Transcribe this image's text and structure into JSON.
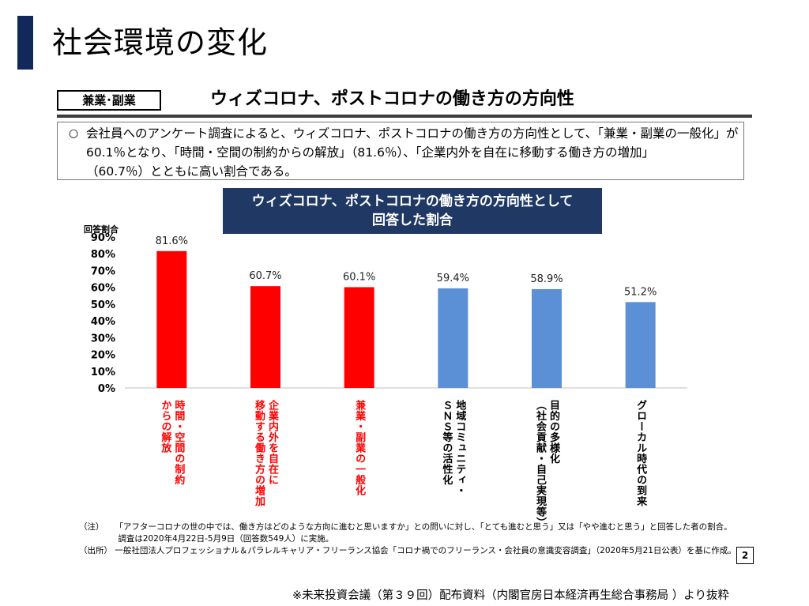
{
  "page_title": "社会環境の変化",
  "tag_label": "兼業･副業",
  "subtitle": "ウィズコロナ、ポストコロナの働き方の方向性",
  "summary": {
    "bullet": "○",
    "line1": "会社員へのアンケート調査によると、ウィズコロナ、ポストコロナの働き方の方向性として、「兼業・副業の一般化」が",
    "line2": "60.1％となり、「時間・空間の制約からの解放」（81.6％）、「企業内外を自在に移動する働き方の増加」",
    "line3": "（60.7％）とともに高い割合である。"
  },
  "chart_data": {
    "type": "bar",
    "title_line1": "ウィズコロナ、ポストコロナの働き方の方向性として",
    "title_line2": "回答した割合",
    "ylabel": "回答割合",
    "ylim": [
      0,
      90
    ],
    "ytick_labels": [
      "90%",
      "80%",
      "70%",
      "60%",
      "50%",
      "40%",
      "30%",
      "20%",
      "10%",
      "0%"
    ],
    "yticks": [
      90,
      80,
      70,
      60,
      50,
      40,
      30,
      20,
      10,
      0
    ],
    "categories": [
      [
        "時間・空間の制約",
        "からの解放"
      ],
      [
        "企業内外を自在に",
        "移動する働き方の増加"
      ],
      [
        "兼業・副業の一般化"
      ],
      [
        "地域コミュニティ・",
        "ＳＮＳ等の活性化"
      ],
      [
        "目的の多様化",
        "（社会貢献・自己実現等）"
      ],
      [
        "グローカル時代の到来"
      ]
    ],
    "values": [
      81.6,
      60.7,
      60.1,
      59.4,
      58.9,
      51.2
    ],
    "value_labels": [
      "81.6%",
      "60.7%",
      "60.1%",
      "59.4%",
      "58.9%",
      "51.2%"
    ],
    "colors": [
      "#ff0000",
      "#ff0000",
      "#ff0000",
      "#5b8fd6",
      "#5b8fd6",
      "#5b8fd6"
    ],
    "label_colors": [
      "#ff0000",
      "#ff0000",
      "#ff0000",
      "#000000",
      "#000000",
      "#000000"
    ],
    "grid": false
  },
  "notes": {
    "note_label": "（注）",
    "note1": "「アフターコロナの世の中では、働き方はどのような方向に進むと思いますか」との問いに対し、「とても進むと思う」又は「やや進むと思う」と回答した者の割合。",
    "note2": "調査は2020年4月22日-5月9日（回答数549人）に実施。",
    "source_label": "（出所）",
    "source_text": "一般社団法人プロフェッショナル＆パラレルキャリア・フリーランス協会「コロナ禍でのフリーランス・会社員の意識変容調査」（2020年5月21日公表）を基に作成。"
  },
  "page_number": "2",
  "footer_source": "※未来投資会議（第３９回）配布資料（内閣官房日本経済再生総合事務局 ）より抜粋"
}
